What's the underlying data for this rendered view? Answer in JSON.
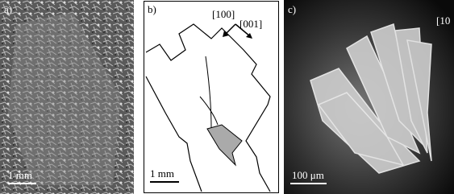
{
  "panels": [
    {
      "label": "a)",
      "scale": "1 mm"
    },
    {
      "label": "b)",
      "directions": [
        "[100]",
        "[001]"
      ],
      "scale": "1 mm"
    },
    {
      "label": "c)",
      "direction": "[10",
      "scale": "100 μm"
    }
  ]
}
